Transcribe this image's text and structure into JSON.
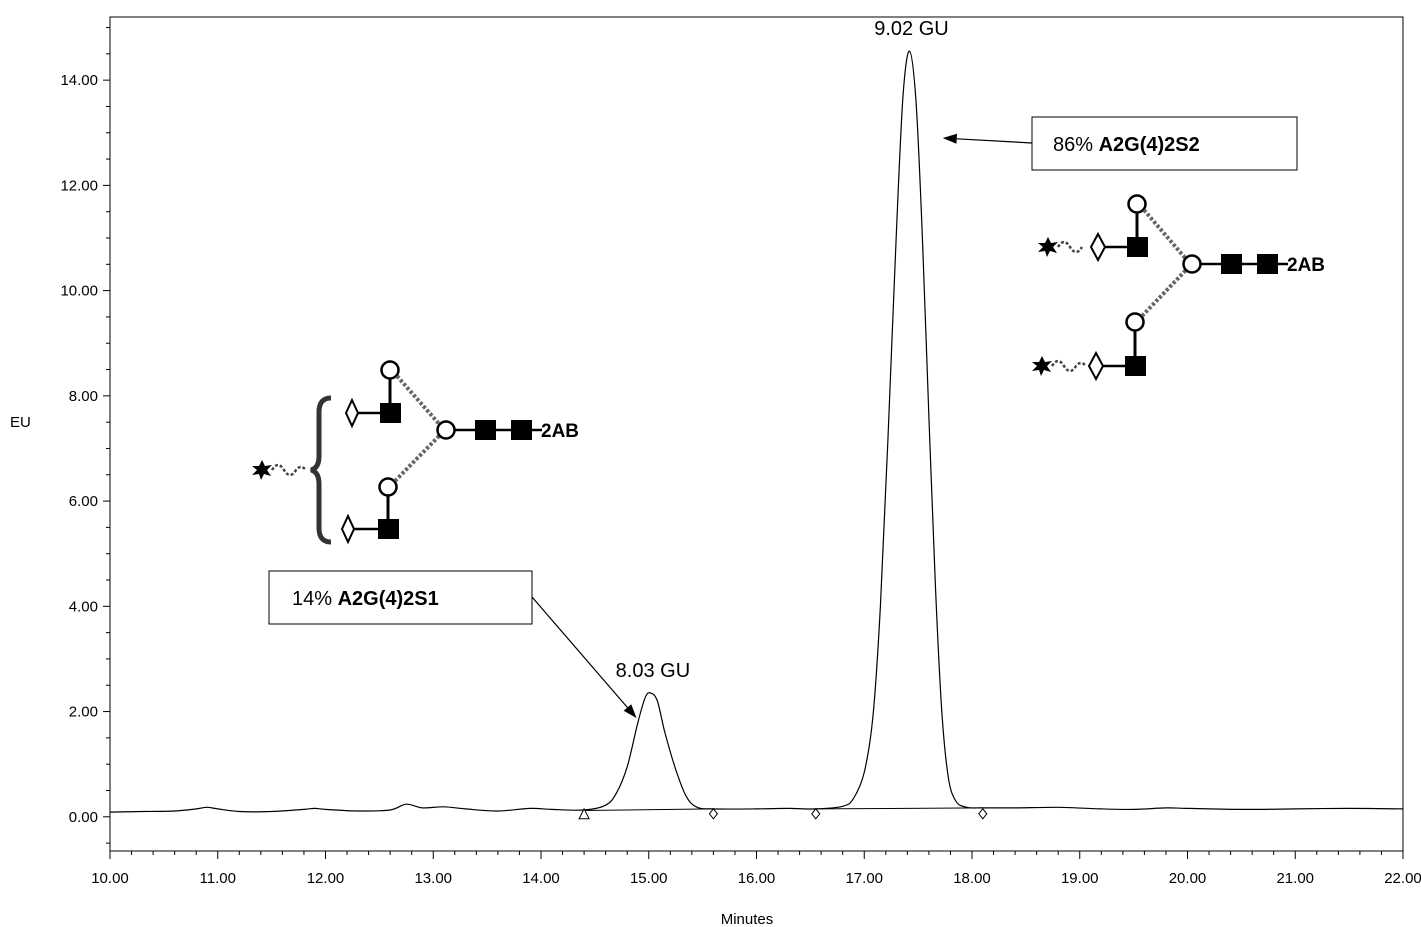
{
  "chart_data": {
    "type": "line",
    "xlabel": "Minutes",
    "ylabel": "EU",
    "xlim": [
      10.0,
      22.0
    ],
    "ylim": [
      -0.65,
      15.2
    ],
    "x_ticks": [
      "10.00",
      "11.00",
      "12.00",
      "13.00",
      "14.00",
      "15.00",
      "16.00",
      "17.00",
      "18.00",
      "19.00",
      "20.00",
      "21.00",
      "22.00"
    ],
    "y_ticks": [
      "0.00",
      "2.00",
      "4.00",
      "6.00",
      "8.00",
      "10.00",
      "12.00",
      "14.00"
    ],
    "x_tick_values": [
      10,
      11,
      12,
      13,
      14,
      15,
      16,
      17,
      18,
      19,
      20,
      21,
      22
    ],
    "y_tick_values": [
      0,
      2,
      4,
      6,
      8,
      10,
      12,
      14
    ],
    "grid": false,
    "series": [
      {
        "trace": [
          [
            10.0,
            0.09
          ],
          [
            10.3,
            0.1
          ],
          [
            10.6,
            0.11
          ],
          [
            10.8,
            0.15
          ],
          [
            10.9,
            0.18
          ],
          [
            11.0,
            0.15
          ],
          [
            11.2,
            0.1
          ],
          [
            11.5,
            0.1
          ],
          [
            11.8,
            0.14
          ],
          [
            11.9,
            0.16
          ],
          [
            12.0,
            0.14
          ],
          [
            12.3,
            0.11
          ],
          [
            12.6,
            0.13
          ],
          [
            12.75,
            0.24
          ],
          [
            12.9,
            0.17
          ],
          [
            13.1,
            0.19
          ],
          [
            13.3,
            0.15
          ],
          [
            13.6,
            0.11
          ],
          [
            13.9,
            0.16
          ],
          [
            14.1,
            0.14
          ],
          [
            14.4,
            0.13
          ],
          [
            14.6,
            0.22
          ],
          [
            14.7,
            0.45
          ],
          [
            14.8,
            0.95
          ],
          [
            14.9,
            1.8
          ],
          [
            14.97,
            2.28
          ],
          [
            15.02,
            2.35
          ],
          [
            15.08,
            2.2
          ],
          [
            15.15,
            1.6
          ],
          [
            15.25,
            0.9
          ],
          [
            15.35,
            0.38
          ],
          [
            15.45,
            0.18
          ],
          [
            15.6,
            0.15
          ],
          [
            16.0,
            0.15
          ],
          [
            16.3,
            0.16
          ],
          [
            16.55,
            0.15
          ],
          [
            16.8,
            0.2
          ],
          [
            16.9,
            0.35
          ],
          [
            17.0,
            0.85
          ],
          [
            17.08,
            1.9
          ],
          [
            17.15,
            4.0
          ],
          [
            17.22,
            7.2
          ],
          [
            17.3,
            11.2
          ],
          [
            17.36,
            13.7
          ],
          [
            17.42,
            14.55
          ],
          [
            17.48,
            13.6
          ],
          [
            17.54,
            11.0
          ],
          [
            17.6,
            7.6
          ],
          [
            17.66,
            4.4
          ],
          [
            17.72,
            2.0
          ],
          [
            17.78,
            0.75
          ],
          [
            17.85,
            0.3
          ],
          [
            17.95,
            0.18
          ],
          [
            18.1,
            0.17
          ],
          [
            18.4,
            0.17
          ],
          [
            18.8,
            0.18
          ],
          [
            19.2,
            0.15
          ],
          [
            19.5,
            0.14
          ],
          [
            19.8,
            0.17
          ],
          [
            20.0,
            0.16
          ],
          [
            20.5,
            0.14
          ],
          [
            21.0,
            0.15
          ],
          [
            21.5,
            0.16
          ],
          [
            22.0,
            0.15
          ]
        ]
      }
    ],
    "baselines": [
      [
        [
          14.4,
          0.12
        ],
        [
          15.6,
          0.15
        ]
      ],
      [
        [
          16.55,
          0.15
        ],
        [
          18.1,
          0.17
        ]
      ]
    ],
    "integration_markers": [
      {
        "x": 14.4,
        "y": 0.0,
        "shape": "triangle"
      },
      {
        "x": 15.6,
        "y": 0.0,
        "shape": "diamond"
      },
      {
        "x": 16.55,
        "y": 0.0,
        "shape": "diamond"
      },
      {
        "x": 18.1,
        "y": 0.0,
        "shape": "diamond"
      }
    ],
    "peak_labels": [
      {
        "text": "8.03 GU",
        "x": 15.02,
        "y": 2.35
      },
      {
        "text": "9.02 GU",
        "x": 17.42,
        "y": 14.55
      }
    ],
    "annotations": [
      {
        "percent": "14%",
        "name": "A2G(4)2S1",
        "arrow_to": {
          "x": 14.85,
          "y": 1.8
        }
      },
      {
        "percent": "86%",
        "name": "A2G(4)2S2",
        "arrow_to": {
          "x": 17.58,
          "y": 12.9
        }
      }
    ],
    "glycan_label": "2AB"
  }
}
